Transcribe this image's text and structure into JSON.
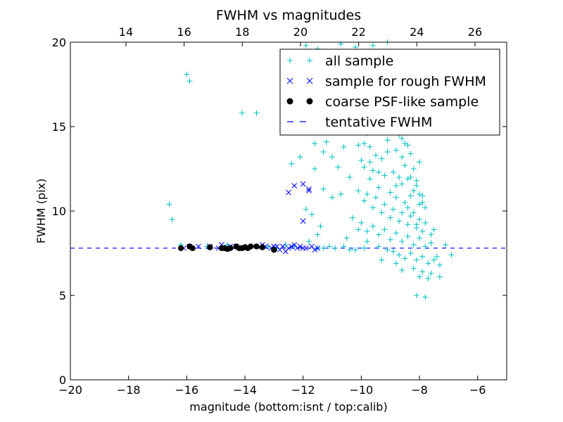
{
  "chart_data": {
    "type": "scatter",
    "title": "FWHM vs magnitudes",
    "xlabel": "magnitude (bottom:isnt / top:calib)",
    "ylabel": "FWHM (pix)",
    "xlim": [
      -20,
      -5
    ],
    "ylim": [
      0,
      20
    ],
    "x_ticks": [
      -20,
      -18,
      -16,
      -14,
      -12,
      -10,
      -8,
      -6
    ],
    "x_tick_labels": [
      "−20",
      "−18",
      "−16",
      "−14",
      "−12",
      "−10",
      "−8",
      "−6"
    ],
    "y_ticks": [
      0,
      5,
      10,
      15,
      20
    ],
    "y_tick_labels": [
      "0",
      "5",
      "10",
      "15",
      "20"
    ],
    "top_axis": {
      "xlim": [
        12.09,
        27.09
      ],
      "ticks": [
        14,
        16,
        18,
        20,
        22,
        24,
        26
      ],
      "tick_labels": [
        "14",
        "16",
        "18",
        "20",
        "22",
        "24",
        "26"
      ]
    },
    "legend_position": "upper-right",
    "colors": {
      "all": "#00bfbf",
      "rough": "#0000ff",
      "coarse": "#000000",
      "tentative": "#0000ff"
    },
    "tentative_fwhm": 7.8,
    "series": [
      {
        "name": "all sample",
        "marker": "plus",
        "points": [
          [
            -16.0,
            18.1
          ],
          [
            -15.9,
            17.7
          ],
          [
            -14.1,
            15.8
          ],
          [
            -13.6,
            15.8
          ],
          [
            -16.6,
            10.4
          ],
          [
            -16.5,
            9.5
          ],
          [
            -11.9,
            10.1
          ],
          [
            -11.7,
            9.8
          ],
          [
            -11.5,
            8.6
          ],
          [
            -11.4,
            9.1
          ],
          [
            -11.8,
            8.2
          ],
          [
            -12.4,
            12.8
          ],
          [
            -12.1,
            13.2
          ],
          [
            -11.9,
            14.8
          ],
          [
            -11.6,
            14.0
          ],
          [
            -11.3,
            13.5
          ],
          [
            -11.2,
            14.1
          ],
          [
            -11.0,
            13.2
          ],
          [
            -10.8,
            12.6
          ],
          [
            -10.6,
            13.8
          ],
          [
            -10.4,
            12.0
          ],
          [
            -11.6,
            12.5
          ],
          [
            -11.3,
            11.3
          ],
          [
            -11.0,
            10.8
          ],
          [
            -10.7,
            11.0
          ],
          [
            -10.3,
            9.6
          ],
          [
            -10.1,
            8.9
          ],
          [
            -10.5,
            8.4
          ],
          [
            -11.1,
            7.9
          ],
          [
            -10.9,
            7.8
          ],
          [
            -11.5,
            7.8
          ],
          [
            -10.2,
            7.7
          ],
          [
            -9.9,
            7.8
          ],
          [
            -9.8,
            8.2
          ],
          [
            -11.9,
            19.8
          ],
          [
            -11.5,
            19.6
          ],
          [
            -10.7,
            19.9
          ],
          [
            -10.2,
            19.7
          ],
          [
            -9.6,
            19.8
          ],
          [
            -9.1,
            20.0
          ],
          [
            -10.0,
            15.3
          ],
          [
            -9.8,
            14.6
          ],
          [
            -9.7,
            13.8
          ],
          [
            -9.5,
            14.9
          ],
          [
            -9.3,
            13.1
          ],
          [
            -9.1,
            14.2
          ],
          [
            -9.0,
            15.6
          ],
          [
            -8.8,
            13.6
          ],
          [
            -8.7,
            14.5
          ],
          [
            -8.6,
            13.2
          ],
          [
            -8.5,
            14.0
          ],
          [
            -8.3,
            13.4
          ],
          [
            -8.2,
            12.5
          ],
          [
            -8.1,
            11.8
          ],
          [
            -8.0,
            12.9
          ],
          [
            -9.9,
            12.6
          ],
          [
            -9.7,
            11.9
          ],
          [
            -9.6,
            12.4
          ],
          [
            -9.4,
            11.4
          ],
          [
            -9.2,
            12.1
          ],
          [
            -9.0,
            11.1
          ],
          [
            -8.9,
            12.3
          ],
          [
            -8.8,
            10.8
          ],
          [
            -8.6,
            11.6
          ],
          [
            -8.5,
            10.5
          ],
          [
            -8.4,
            11.9
          ],
          [
            -8.3,
            10.9
          ],
          [
            -8.2,
            11.2
          ],
          [
            -8.0,
            10.4
          ],
          [
            -7.9,
            10.9
          ],
          [
            -7.8,
            10.2
          ],
          [
            -10.1,
            11.2
          ],
          [
            -9.9,
            10.6
          ],
          [
            -9.8,
            11.0
          ],
          [
            -9.6,
            10.2
          ],
          [
            -9.5,
            10.8
          ],
          [
            -9.3,
            9.9
          ],
          [
            -9.2,
            10.4
          ],
          [
            -9.0,
            9.6
          ],
          [
            -8.9,
            10.1
          ],
          [
            -8.7,
            9.4
          ],
          [
            -8.6,
            9.9
          ],
          [
            -8.4,
            9.2
          ],
          [
            -8.3,
            9.7
          ],
          [
            -8.1,
            9.0
          ],
          [
            -8.0,
            9.5
          ],
          [
            -7.9,
            8.8
          ],
          [
            -7.8,
            9.3
          ],
          [
            -7.6,
            8.6
          ],
          [
            -7.5,
            8.9
          ],
          [
            -10.0,
            9.3
          ],
          [
            -9.8,
            8.8
          ],
          [
            -9.6,
            9.1
          ],
          [
            -9.4,
            8.6
          ],
          [
            -9.2,
            8.9
          ],
          [
            -9.0,
            8.3
          ],
          [
            -8.8,
            8.7
          ],
          [
            -8.6,
            8.2
          ],
          [
            -8.4,
            8.5
          ],
          [
            -8.2,
            8.0
          ],
          [
            -8.0,
            8.4
          ],
          [
            -7.8,
            7.9
          ],
          [
            -7.6,
            8.1
          ],
          [
            -9.4,
            7.9
          ],
          [
            -9.1,
            7.7
          ],
          [
            -8.9,
            7.6
          ],
          [
            -8.7,
            7.4
          ],
          [
            -8.5,
            7.2
          ],
          [
            -8.3,
            7.5
          ],
          [
            -8.1,
            7.1
          ],
          [
            -7.9,
            7.3
          ],
          [
            -7.7,
            6.9
          ],
          [
            -7.5,
            7.1
          ],
          [
            -7.4,
            7.3
          ],
          [
            -9.3,
            7.1
          ],
          [
            -8.8,
            6.9
          ],
          [
            -8.2,
            6.6
          ],
          [
            -7.9,
            6.4
          ],
          [
            -7.6,
            6.3
          ],
          [
            -7.3,
            6.8
          ],
          [
            -8.6,
            6.5
          ],
          [
            -8.0,
            6.1
          ],
          [
            -7.7,
            6.0
          ],
          [
            -7.3,
            6.1
          ],
          [
            -6.9,
            7.4
          ],
          [
            -7.1,
            8.0
          ],
          [
            -8.1,
            5.0
          ],
          [
            -7.8,
            4.9
          ],
          [
            -8.4,
            13.9
          ],
          [
            -8.6,
            14.3
          ],
          [
            -8.3,
            12.0
          ],
          [
            -8.1,
            11.5
          ],
          [
            -8.0,
            11.0
          ],
          [
            -7.9,
            10.5
          ],
          [
            -8.5,
            12.7
          ],
          [
            -8.7,
            12.0
          ],
          [
            -9.1,
            13.5
          ],
          [
            -9.5,
            13.3
          ],
          [
            -10.1,
            13.9
          ],
          [
            -10.3,
            14.8
          ],
          [
            -9.9,
            14.0
          ],
          [
            -10.0,
            13.0
          ],
          [
            -9.7,
            12.9
          ],
          [
            -9.4,
            12.3
          ],
          [
            -8.8,
            11.5
          ],
          [
            -8.4,
            10.2
          ],
          [
            -8.2,
            9.9
          ],
          [
            -8.1,
            9.2
          ],
          [
            -12.6,
            8.0
          ],
          [
            -12.3,
            7.9
          ],
          [
            -13.2,
            7.9
          ],
          [
            -14.6,
            8.0
          ],
          [
            -15.3,
            7.9
          ],
          [
            -16.2,
            8.0
          ],
          [
            -11.3,
            7.8
          ],
          [
            -12.9,
            7.8
          ],
          [
            -10.6,
            7.9
          ],
          [
            -10.4,
            7.7
          ]
        ]
      },
      {
        "name": "sample for rough FWHM",
        "marker": "x",
        "points": [
          [
            -12.5,
            11.1
          ],
          [
            -12.3,
            11.5
          ],
          [
            -12.0,
            11.6
          ],
          [
            -11.8,
            11.2
          ],
          [
            -11.8,
            11.3
          ],
          [
            -12.0,
            9.4
          ],
          [
            -15.6,
            7.9
          ],
          [
            -15.2,
            7.9
          ],
          [
            -14.8,
            8.0
          ],
          [
            -14.3,
            7.9
          ],
          [
            -13.9,
            7.9
          ],
          [
            -13.7,
            7.9
          ],
          [
            -13.4,
            8.0
          ],
          [
            -13.1,
            7.8
          ],
          [
            -12.9,
            7.9
          ],
          [
            -12.7,
            7.9
          ],
          [
            -12.5,
            7.8
          ],
          [
            -12.3,
            8.0
          ],
          [
            -12.1,
            7.9
          ],
          [
            -11.9,
            7.8
          ],
          [
            -11.7,
            7.9
          ],
          [
            -11.5,
            7.8
          ],
          [
            -12.8,
            7.7
          ],
          [
            -12.6,
            7.6
          ],
          [
            -12.2,
            7.8
          ],
          [
            -11.6,
            7.7
          ],
          [
            -13.3,
            7.9
          ],
          [
            -14.0,
            7.8
          ],
          [
            -14.5,
            7.9
          ],
          [
            -14.9,
            7.8
          ],
          [
            -15.9,
            7.9
          ],
          [
            -16.1,
            7.8
          ],
          [
            -12.4,
            7.9
          ],
          [
            -12.0,
            7.8
          ],
          [
            -13.0,
            7.9
          ]
        ]
      },
      {
        "name": "coarse PSF-like sample",
        "marker": "dot",
        "points": [
          [
            -16.2,
            7.8
          ],
          [
            -15.9,
            7.9
          ],
          [
            -15.8,
            7.8
          ],
          [
            -15.2,
            7.85
          ],
          [
            -14.8,
            7.8
          ],
          [
            -14.6,
            7.75
          ],
          [
            -14.5,
            7.8
          ],
          [
            -14.3,
            7.9
          ],
          [
            -14.1,
            7.8
          ],
          [
            -14.0,
            7.85
          ],
          [
            -13.9,
            7.8
          ],
          [
            -13.8,
            7.9
          ],
          [
            -13.6,
            7.9
          ],
          [
            -13.4,
            7.85
          ],
          [
            -13.0,
            7.7
          ],
          [
            -14.2,
            7.8
          ],
          [
            -14.7,
            7.8
          ]
        ]
      },
      {
        "name": "tentative FWHM",
        "marker": "dashed-line",
        "points": []
      }
    ]
  }
}
